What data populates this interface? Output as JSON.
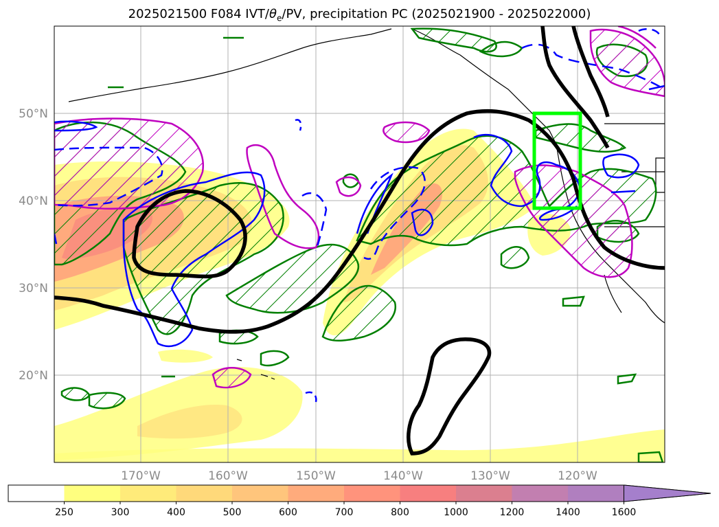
{
  "title": {
    "prefix": "2025021500 F084 IVT/",
    "theta": "θ",
    "theta_sub": "e",
    "suffix": "/PV, precipitation PC (2025021900 - 2025022000)"
  },
  "map": {
    "latitude_labels": [
      "50°N",
      "40°N",
      "30°N",
      "20°N"
    ],
    "longitude_labels": [
      "170°W",
      "160°W",
      "150°W",
      "140°W",
      "130°W",
      "120°W"
    ],
    "target_box_color": "#00ff00",
    "contour_colors": {
      "pv_black": "#000000",
      "precip_green": "#007f00",
      "theta_blue": "#0000ff",
      "theta_magenta": "#bf00bf"
    }
  },
  "colorbar": {
    "labels": [
      "250",
      "300",
      "400",
      "500",
      "600",
      "700",
      "800",
      "1000",
      "1200",
      "1400",
      "1600"
    ],
    "colors": [
      "#ffffff",
      "#ffff7f",
      "#ffeb7a",
      "#ffd97a",
      "#ffc57c",
      "#ffab7c",
      "#ff937c",
      "#f77f7f",
      "#db7f8f",
      "#c27fb0",
      "#b07fbf",
      "#a57fcc"
    ],
    "extend": "max"
  }
}
